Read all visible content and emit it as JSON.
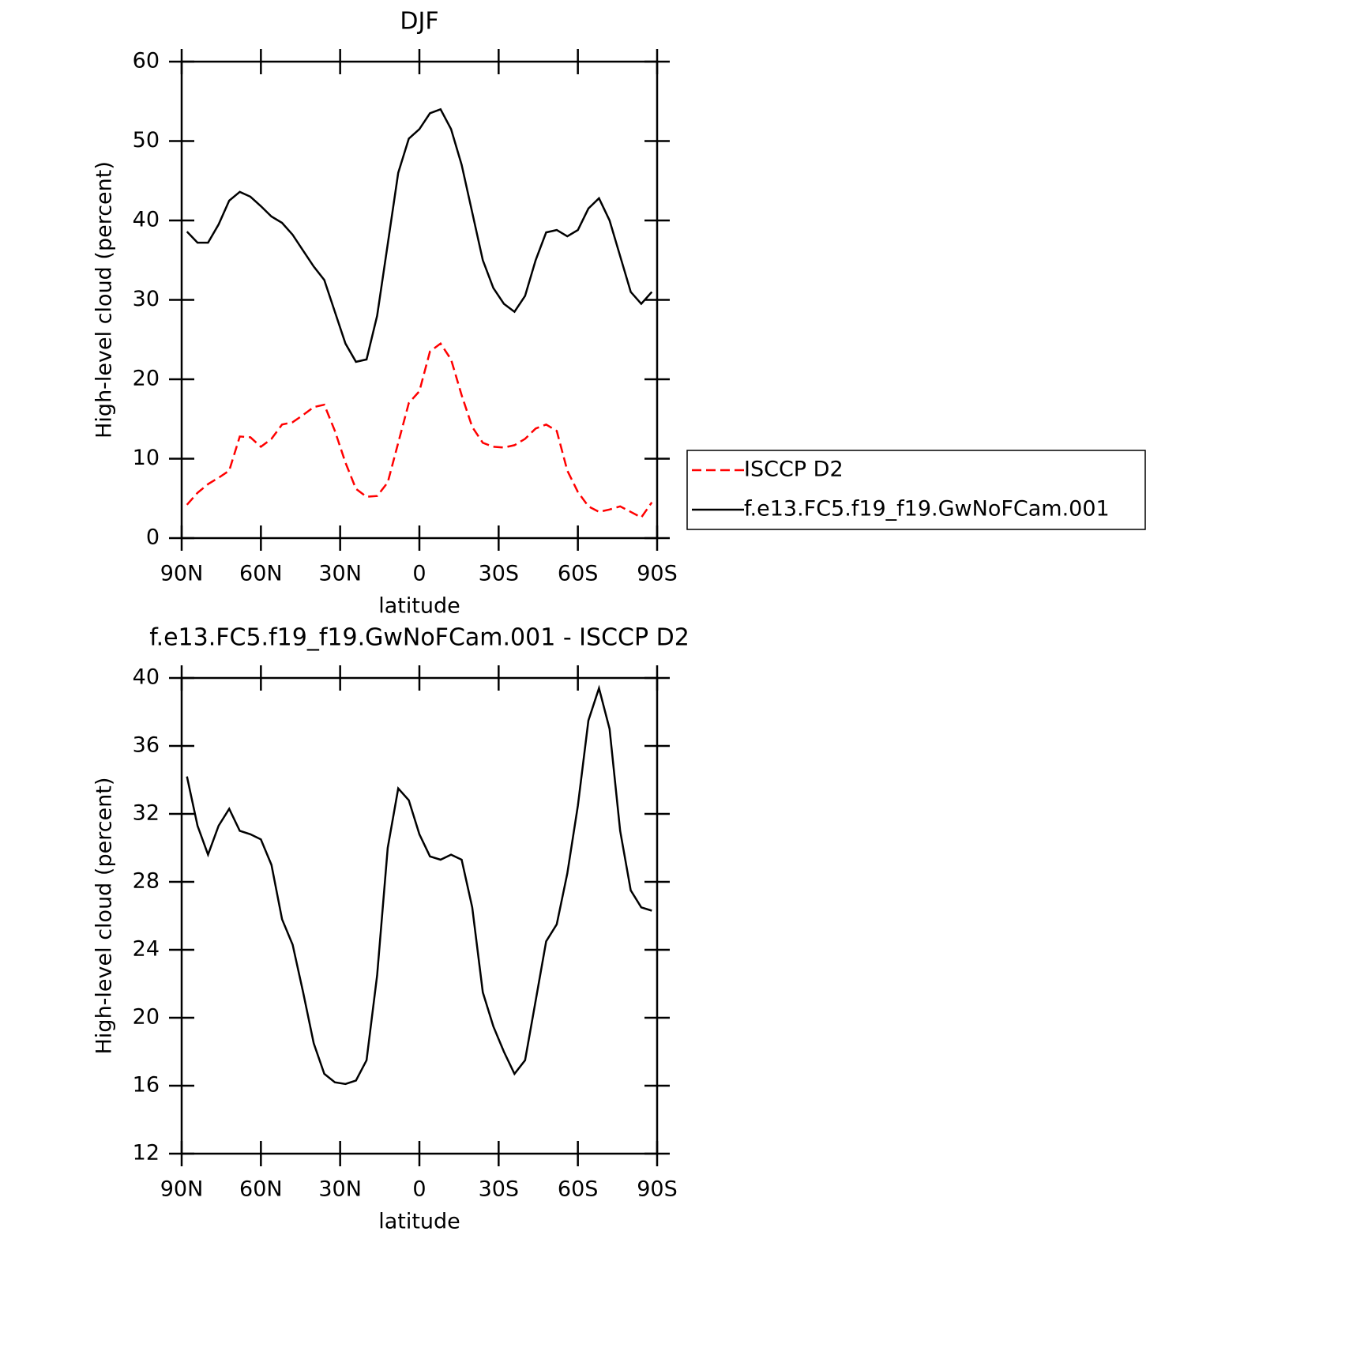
{
  "chart_data": [
    {
      "type": "line",
      "title": "DJF",
      "xlabel": "latitude",
      "ylabel": "High-level cloud (percent)",
      "xlim": [
        90,
        -90
      ],
      "ylim": [
        0,
        60
      ],
      "xticks": [
        {
          "value": 90,
          "label": "90N"
        },
        {
          "value": 60,
          "label": "60N"
        },
        {
          "value": 30,
          "label": "30N"
        },
        0,
        {
          "value": -30,
          "label": "30S"
        },
        {
          "value": -60,
          "label": "60S"
        },
        {
          "value": -90,
          "label": "90S"
        }
      ],
      "yticks": [
        0,
        10,
        20,
        30,
        40,
        50,
        60
      ],
      "legend": "right",
      "x": [
        88,
        84,
        80,
        76,
        72,
        68,
        64,
        60,
        56,
        52,
        48,
        44,
        40,
        36,
        32,
        28,
        24,
        20,
        16,
        12,
        8,
        4,
        0,
        -4,
        -8,
        -12,
        -16,
        -20,
        -24,
        -28,
        -32,
        -36,
        -40,
        -44,
        -48,
        -52,
        -56,
        -60,
        -64,
        -68,
        -72,
        -76,
        -80,
        -84,
        -88
      ],
      "series": [
        {
          "name": "ISCCP D2",
          "color": "#ff0000",
          "dash": "dashed",
          "values": [
            4.2,
            5.7,
            6.8,
            7.6,
            8.5,
            12.8,
            12.7,
            11.5,
            12.5,
            14.3,
            14.6,
            15.5,
            16.5,
            16.8,
            13.5,
            9.5,
            6.2,
            5.2,
            5.3,
            7,
            12,
            17,
            18.5,
            23.5,
            24.5,
            22.5,
            18,
            14,
            12,
            11.5,
            11.4,
            11.7,
            12.5,
            13.8,
            14.3,
            13.5,
            8.5,
            5.8,
            4,
            3.3,
            3.6,
            4,
            3.3,
            2.6,
            4.5
          ]
        },
        {
          "name": "f.e13.FC5.f19_f19.GwNoFCam.001",
          "color": "#000000",
          "dash": "solid",
          "values": [
            38.6,
            37.2,
            37.2,
            39.5,
            42.5,
            43.6,
            43,
            41.8,
            40.5,
            39.7,
            38.2,
            36.2,
            34.2,
            32.5,
            28.5,
            24.5,
            22.2,
            22.5,
            28,
            37,
            46,
            50.3,
            51.5,
            53.5,
            54,
            51.5,
            47,
            41,
            35,
            31.5,
            29.5,
            28.5,
            30.5,
            35,
            38.5,
            38.8,
            38,
            38.8,
            41.5,
            42.8,
            40,
            35.5,
            31,
            29.5,
            31
          ]
        }
      ]
    },
    {
      "type": "line",
      "title": "f.e13.FC5.f19_f19.GwNoFCam.001 - ISCCP D2",
      "xlabel": "latitude",
      "ylabel": "High-level cloud (percent)",
      "xlim": [
        90,
        -90
      ],
      "ylim": [
        12,
        40
      ],
      "xticks": [
        {
          "value": 90,
          "label": "90N"
        },
        {
          "value": 60,
          "label": "60N"
        },
        {
          "value": 30,
          "label": "30N"
        },
        0,
        {
          "value": -30,
          "label": "30S"
        },
        {
          "value": -60,
          "label": "60S"
        },
        {
          "value": -90,
          "label": "90S"
        }
      ],
      "yticks": [
        12,
        16,
        20,
        24,
        28,
        32,
        36,
        40
      ],
      "x": [
        88,
        84,
        80,
        76,
        72,
        68,
        64,
        60,
        56,
        52,
        48,
        44,
        40,
        36,
        32,
        28,
        24,
        20,
        16,
        12,
        8,
        4,
        0,
        -4,
        -8,
        -12,
        -16,
        -20,
        -24,
        -28,
        -32,
        -36,
        -40,
        -44,
        -48,
        -52,
        -56,
        -60,
        -64,
        -68,
        -72,
        -76,
        -80,
        -84,
        -88
      ],
      "series": [
        {
          "color": "#000000",
          "dash": "solid",
          "values": [
            34.2,
            31.3,
            29.6,
            31.3,
            32.3,
            31,
            30.8,
            30.5,
            29,
            25.8,
            24.3,
            21.5,
            18.5,
            16.7,
            16.2,
            16.1,
            16.3,
            17.5,
            22.5,
            30,
            33.5,
            32.8,
            30.8,
            29.5,
            29.3,
            29.6,
            29.3,
            26.5,
            21.5,
            19.5,
            18,
            16.7,
            17.5,
            21,
            24.5,
            25.5,
            28.5,
            32.5,
            37.5,
            39.4,
            37,
            31,
            27.5,
            26.5,
            26.3
          ]
        }
      ]
    }
  ]
}
